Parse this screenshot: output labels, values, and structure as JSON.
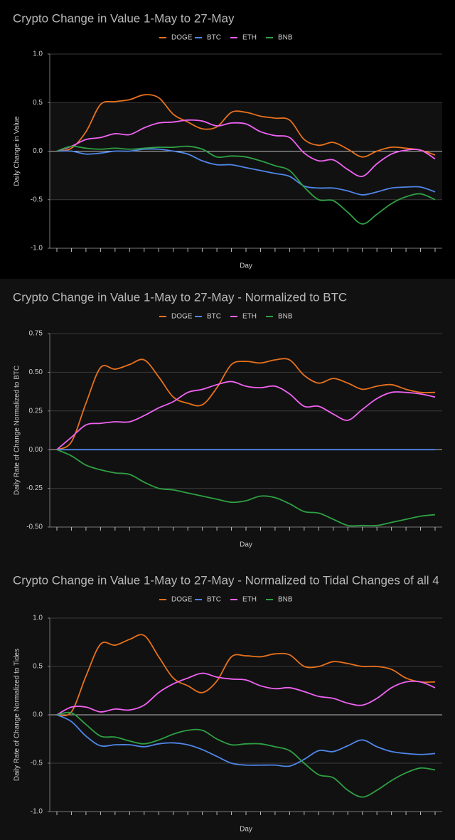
{
  "chart_data": [
    {
      "type": "line",
      "title": "Crypto Change in Value 1-May to 27-May",
      "x_label": "Day",
      "y_label": "Daily Change in Value",
      "categories": [
        null,
        null,
        null,
        null,
        null,
        null,
        null,
        null,
        null,
        null,
        null,
        null,
        null,
        null,
        null,
        null,
        null,
        null,
        null,
        null,
        null,
        null,
        null,
        null,
        null,
        null,
        null
      ],
      "ylim": [
        -1.0,
        1.0
      ],
      "yticks": [
        {
          "value": 1.0,
          "label": "1.0"
        },
        {
          "value": 0.5,
          "label": "0.5"
        },
        {
          "value": 0.0,
          "label": "0.0"
        },
        {
          "value": -0.5,
          "label": "-0.5"
        },
        {
          "value": -1.0,
          "label": "-1.0"
        }
      ],
      "grid": true,
      "legend": "top",
      "series": [
        {
          "name": "DOGE",
          "color": "#e8711c",
          "values": [
            0,
            0.03,
            0.2,
            0.48,
            0.51,
            0.53,
            0.58,
            0.55,
            0.38,
            0.3,
            0.23,
            0.25,
            0.4,
            0.4,
            0.36,
            0.34,
            0.32,
            0.12,
            0.06,
            0.09,
            0.02,
            -0.06,
            0.0,
            0.04,
            0.03,
            0.01,
            -0.04
          ]
        },
        {
          "name": "BTC",
          "color": "#4f86e8",
          "values": [
            0,
            0,
            -0.03,
            -0.02,
            0,
            0,
            0.02,
            0.02,
            0,
            -0.03,
            -0.1,
            -0.14,
            -0.14,
            -0.17,
            -0.2,
            -0.23,
            -0.26,
            -0.36,
            -0.38,
            -0.38,
            -0.41,
            -0.45,
            -0.42,
            -0.38,
            -0.37,
            -0.37,
            -0.42
          ]
        },
        {
          "name": "ETH",
          "color": "#f062f2",
          "values": [
            0,
            0.05,
            0.12,
            0.14,
            0.18,
            0.17,
            0.24,
            0.29,
            0.3,
            0.32,
            0.31,
            0.26,
            0.29,
            0.28,
            0.2,
            0.16,
            0.14,
            -0.02,
            -0.1,
            -0.09,
            -0.19,
            -0.26,
            -0.13,
            -0.03,
            0.01,
            0.01,
            -0.08
          ]
        },
        {
          "name": "BNB",
          "color": "#2ea043",
          "values": [
            0,
            0.05,
            0.03,
            0.02,
            0.03,
            0.02,
            0.03,
            0.04,
            0.04,
            0.05,
            0.02,
            -0.06,
            -0.05,
            -0.06,
            -0.1,
            -0.15,
            -0.2,
            -0.37,
            -0.5,
            -0.51,
            -0.63,
            -0.75,
            -0.65,
            -0.54,
            -0.47,
            -0.44,
            -0.5
          ]
        }
      ]
    },
    {
      "type": "line",
      "title": "Crypto Change in Value 1-May to 27-May - Normalized to BTC",
      "x_label": "Day",
      "y_label": "Daily Rate of Change Normalized to BTC",
      "categories": [
        null,
        null,
        null,
        null,
        null,
        null,
        null,
        null,
        null,
        null,
        null,
        null,
        null,
        null,
        null,
        null,
        null,
        null,
        null,
        null,
        null,
        null,
        null,
        null,
        null,
        null,
        null
      ],
      "ylim": [
        -0.5,
        0.75
      ],
      "yticks": [
        0.75,
        {
          "value": 0.5,
          "label": "0.50"
        },
        0.25,
        {
          "value": 0.0,
          "label": "0.00"
        },
        -0.25,
        {
          "value": -0.5,
          "label": "-0.50"
        }
      ],
      "grid": true,
      "legend": "top",
      "series": [
        {
          "name": "DOGE",
          "color": "#e8711c",
          "values": [
            0,
            0.05,
            0.3,
            0.53,
            0.52,
            0.55,
            0.58,
            0.47,
            0.34,
            0.3,
            0.29,
            0.4,
            0.55,
            0.57,
            0.56,
            0.58,
            0.58,
            0.48,
            0.43,
            0.46,
            0.43,
            0.39,
            0.41,
            0.42,
            0.39,
            0.37,
            0.37
          ]
        },
        {
          "name": "BTC",
          "color": "#4f86e8",
          "values": [
            0,
            0,
            0,
            0,
            0,
            0,
            0,
            0,
            0,
            0,
            0,
            0,
            0,
            0,
            0,
            0,
            0,
            0,
            0,
            0,
            0,
            0,
            0,
            0,
            0,
            0,
            0
          ]
        },
        {
          "name": "ETH",
          "color": "#f062f2",
          "values": [
            0,
            0.08,
            0.16,
            0.17,
            0.18,
            0.18,
            0.22,
            0.27,
            0.31,
            0.37,
            0.39,
            0.42,
            0.44,
            0.41,
            0.4,
            0.41,
            0.36,
            0.28,
            0.28,
            0.23,
            0.19,
            0.26,
            0.33,
            0.37,
            0.37,
            0.36,
            0.34
          ]
        },
        {
          "name": "BNB",
          "color": "#2ea043",
          "values": [
            0,
            -0.04,
            -0.1,
            -0.13,
            -0.15,
            -0.16,
            -0.21,
            -0.25,
            -0.26,
            -0.28,
            -0.3,
            -0.32,
            -0.34,
            -0.33,
            -0.3,
            -0.31,
            -0.35,
            -0.4,
            -0.41,
            -0.45,
            -0.49,
            -0.49,
            -0.49,
            -0.47,
            -0.45,
            -0.43,
            -0.42
          ]
        }
      ]
    },
    {
      "type": "line",
      "title": "Crypto Change in Value 1-May to 27-May - Normalized to Tidal Changes of all 4",
      "x_label": "Day",
      "y_label": "Daily Rate of Change Normalized to Tides",
      "categories": [
        null,
        null,
        null,
        null,
        null,
        null,
        null,
        null,
        null,
        null,
        null,
        null,
        null,
        null,
        null,
        null,
        null,
        null,
        null,
        null,
        null,
        null,
        null,
        null,
        null,
        null,
        null
      ],
      "ylim": [
        -1.0,
        1.0
      ],
      "yticks": [
        {
          "value": 1.0,
          "label": "1.0"
        },
        {
          "value": 0.5,
          "label": "0.5"
        },
        {
          "value": 0.0,
          "label": "0.0"
        },
        {
          "value": -0.5,
          "label": "-0.5"
        },
        {
          "value": -1.0,
          "label": "-1.0"
        }
      ],
      "grid": true,
      "legend": "top",
      "series": [
        {
          "name": "DOGE",
          "color": "#e8711c",
          "values": [
            0,
            0.03,
            0.4,
            0.73,
            0.72,
            0.78,
            0.82,
            0.6,
            0.38,
            0.3,
            0.23,
            0.35,
            0.6,
            0.61,
            0.6,
            0.63,
            0.62,
            0.5,
            0.5,
            0.55,
            0.53,
            0.5,
            0.5,
            0.47,
            0.38,
            0.34,
            0.34
          ]
        },
        {
          "name": "BTC",
          "color": "#4f86e8",
          "values": [
            0,
            -0.07,
            -0.22,
            -0.32,
            -0.31,
            -0.31,
            -0.33,
            -0.3,
            -0.29,
            -0.31,
            -0.36,
            -0.43,
            -0.5,
            -0.52,
            -0.52,
            -0.52,
            -0.53,
            -0.46,
            -0.37,
            -0.38,
            -0.32,
            -0.26,
            -0.33,
            -0.38,
            -0.4,
            -0.41,
            -0.4
          ]
        },
        {
          "name": "ETH",
          "color": "#f062f2",
          "values": [
            0,
            0.08,
            0.08,
            0.03,
            0.06,
            0.05,
            0.1,
            0.23,
            0.32,
            0.38,
            0.43,
            0.39,
            0.37,
            0.36,
            0.3,
            0.27,
            0.28,
            0.24,
            0.19,
            0.17,
            0.12,
            0.1,
            0.17,
            0.28,
            0.34,
            0.34,
            0.28
          ]
        },
        {
          "name": "BNB",
          "color": "#2ea043",
          "values": [
            0,
            0.02,
            -0.1,
            -0.22,
            -0.23,
            -0.27,
            -0.3,
            -0.26,
            -0.2,
            -0.16,
            -0.16,
            -0.25,
            -0.31,
            -0.3,
            -0.3,
            -0.33,
            -0.37,
            -0.5,
            -0.62,
            -0.65,
            -0.78,
            -0.85,
            -0.78,
            -0.68,
            -0.6,
            -0.55,
            -0.57
          ]
        }
      ]
    }
  ]
}
